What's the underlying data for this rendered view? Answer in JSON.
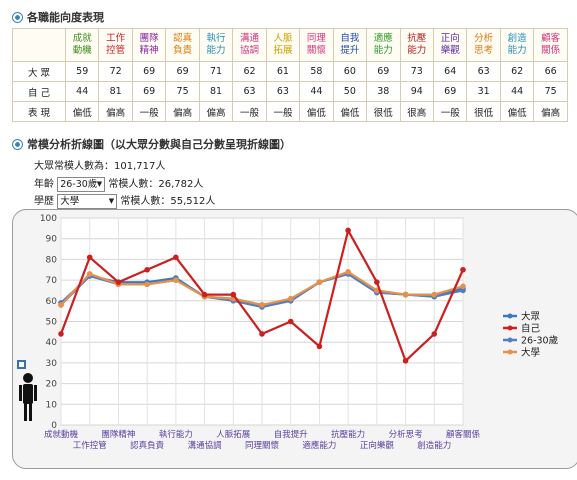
{
  "sections": {
    "ability_title": "各職能向度表現",
    "chart_title": "常模分析折線圖（以大眾分數與自己分數呈現折線圖）"
  },
  "table": {
    "headers": [
      {
        "l1": "成就",
        "l2": "動機",
        "color": "#3a8f1a"
      },
      {
        "l1": "工作",
        "l2": "控管",
        "color": "#cc1f1f"
      },
      {
        "l1": "團隊",
        "l2": "精神",
        "color": "#8b2aa8"
      },
      {
        "l1": "認真",
        "l2": "負責",
        "color": "#e07b12"
      },
      {
        "l1": "執行",
        "l2": "能力",
        "color": "#1f8fb8"
      },
      {
        "l1": "溝通",
        "l2": "協調",
        "color": "#d4357d"
      },
      {
        "l1": "人脈",
        "l2": "拓展",
        "color": "#c8a300"
      },
      {
        "l1": "同理",
        "l2": "關懷",
        "color": "#d4357d"
      },
      {
        "l1": "自我",
        "l2": "提升",
        "color": "#1c4fa8"
      },
      {
        "l1": "適應",
        "l2": "能力",
        "color": "#2a9a2a"
      },
      {
        "l1": "抗壓",
        "l2": "能力",
        "color": "#b22222"
      },
      {
        "l1": "正向",
        "l2": "樂觀",
        "color": "#5a2aa8"
      },
      {
        "l1": "分析",
        "l2": "思考",
        "color": "#e07b12"
      },
      {
        "l1": "創造",
        "l2": "能力",
        "color": "#1f8fb8"
      },
      {
        "l1": "顧客",
        "l2": "關係",
        "color": "#d4357d"
      }
    ],
    "rows": [
      {
        "label": "大眾",
        "cells": [
          "59",
          "72",
          "69",
          "69",
          "71",
          "62",
          "61",
          "58",
          "60",
          "69",
          "73",
          "64",
          "63",
          "62",
          "66"
        ]
      },
      {
        "label": "自己",
        "cells": [
          "44",
          "81",
          "69",
          "75",
          "81",
          "63",
          "63",
          "44",
          "50",
          "38",
          "94",
          "69",
          "31",
          "44",
          "75"
        ]
      },
      {
        "label": "表現",
        "cells": [
          "偏低",
          "偏高",
          "一般",
          "偏高",
          "偏高",
          "一般",
          "一般",
          "偏低",
          "偏低",
          "很低",
          "很高",
          "一般",
          "很低",
          "偏低",
          "偏高"
        ]
      }
    ]
  },
  "meta": {
    "total_label": "大眾常模人數為：101,717人",
    "age_label": "年齡",
    "age_value": "26-30歲",
    "age_count": "常模人數：26,782人",
    "edu_label": "學歷",
    "edu_value": "大學",
    "edu_count": "常模人數：55,512人"
  },
  "chart_data": {
    "type": "line",
    "categories": [
      "成就動機",
      "工作控管",
      "團隊精神",
      "認真負責",
      "執行能力",
      "溝通協調",
      "人脈拓展",
      "同理關懷",
      "自我提升",
      "適應能力",
      "抗壓能力",
      "正向樂觀",
      "分析思考",
      "創造能力",
      "顧客關係"
    ],
    "ylim": [
      0,
      100
    ],
    "yticks": [
      0,
      10,
      20,
      30,
      40,
      50,
      60,
      70,
      80,
      90,
      100
    ],
    "grid": true,
    "legend": "right",
    "series": [
      {
        "name": "大眾",
        "color": "#3a78c0",
        "values": [
          59,
          72,
          69,
          69,
          71,
          62,
          61,
          58,
          60,
          69,
          73,
          64,
          63,
          62,
          66
        ]
      },
      {
        "name": "自己",
        "color": "#cc1f1f",
        "values": [
          44,
          81,
          69,
          75,
          81,
          63,
          63,
          44,
          50,
          38,
          94,
          69,
          31,
          44,
          75
        ]
      },
      {
        "name": "26-30歲",
        "color": "#4f7ec4",
        "values": [
          58,
          72,
          68,
          68,
          70,
          62,
          60,
          57,
          60,
          69,
          73,
          64,
          63,
          62,
          65
        ]
      },
      {
        "name": "大學",
        "color": "#e8904a",
        "values": [
          58,
          73,
          68,
          68,
          70,
          62,
          61,
          58,
          61,
          69,
          74,
          65,
          63,
          63,
          67
        ]
      }
    ]
  }
}
